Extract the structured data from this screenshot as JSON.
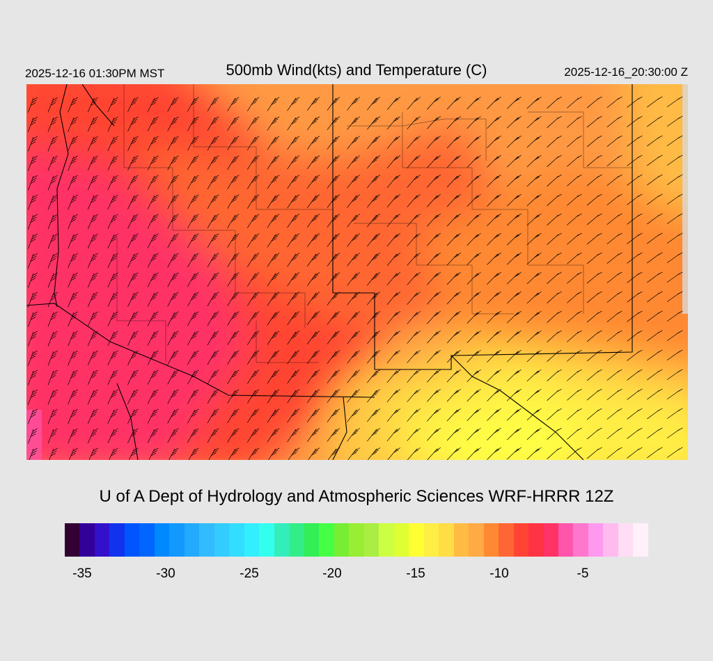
{
  "header": {
    "title": "500mb Wind(kts) and Temperature (C)",
    "valid_local": "2025-12-16 01:30PM MST",
    "valid_utc": "2025-12-16_20:30:00 Z"
  },
  "footer": {
    "credit": "U of A Dept of Hydrology and Atmospheric Sciences WRF-HRRR 12Z"
  },
  "colorbar": {
    "colors": [
      "#330033",
      "#330099",
      "#3311cc",
      "#1133ee",
      "#0055ff",
      "#0066ff",
      "#0088ff",
      "#1199ff",
      "#22aaff",
      "#33bbff",
      "#33ccff",
      "#33ddff",
      "#33eeff",
      "#33ffee",
      "#33eebb",
      "#33ee88",
      "#33ee55",
      "#44ff44",
      "#77ee33",
      "#99ee33",
      "#aaee44",
      "#ccff44",
      "#ddff33",
      "#ffff33",
      "#ffee44",
      "#ffdd44",
      "#ffbb44",
      "#ffaa44",
      "#ff8833",
      "#ff6633",
      "#ff4433",
      "#ff3344",
      "#ff3366",
      "#ff55aa",
      "#ff77cc",
      "#ff99ee",
      "#ffbbee",
      "#ffddf5",
      "#fff0fa"
    ],
    "tick_labels": [
      "-35",
      "-30",
      "-25",
      "-20",
      "-15",
      "-10",
      "-5"
    ]
  },
  "map": {
    "field_description": "temperature",
    "colors": {
      "cold": "#ff3366",
      "cool": "#ff4433",
      "mid": "#ff6633",
      "warm": "#ff9944",
      "warmer": "#ffbb44",
      "yellow": "#ffee44",
      "yellow_light": "#ffff44",
      "magenta_patch": "#ff55aa"
    }
  }
}
